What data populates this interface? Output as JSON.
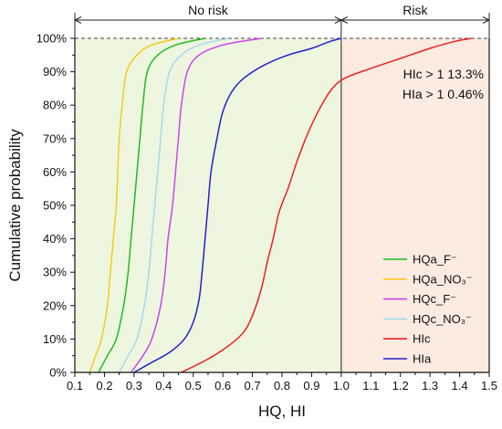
{
  "chart_data": {
    "type": "line",
    "xlabel": "HQ, HI",
    "ylabel": "Cumulative probability",
    "xlim": [
      0.1,
      1.5
    ],
    "ylim": [
      0,
      100
    ],
    "x_ticks": [
      "0.1",
      "0.2",
      "0.3",
      "0.4",
      "0.5",
      "0.6",
      "0.7",
      "0.8",
      "0.9",
      "1.0",
      "1.1",
      "1.2",
      "1.3",
      "1.4",
      "1.5"
    ],
    "y_ticks": [
      "0%",
      "10%",
      "20%",
      "30%",
      "40%",
      "50%",
      "60%",
      "70%",
      "80%",
      "90%",
      "100%"
    ],
    "regions": [
      {
        "label": "No risk",
        "x_from": 0.1,
        "x_to": 1.0,
        "color": "#eef6e0"
      },
      {
        "label": "Risk",
        "x_from": 1.0,
        "x_to": 1.5,
        "color": "#fbebe0"
      }
    ],
    "annotations": [
      "HIc > 1 13.3%",
      "HIa > 1 0.46%"
    ],
    "legend_position": "bottom-right",
    "series": [
      {
        "name": "HQa_F⁻",
        "color": "#22bb22",
        "points": [
          [
            0.18,
            0
          ],
          [
            0.21,
            5
          ],
          [
            0.24,
            10
          ],
          [
            0.265,
            20
          ],
          [
            0.28,
            30
          ],
          [
            0.29,
            40
          ],
          [
            0.3,
            50
          ],
          [
            0.31,
            60
          ],
          [
            0.32,
            70
          ],
          [
            0.33,
            80
          ],
          [
            0.345,
            90
          ],
          [
            0.38,
            95
          ],
          [
            0.44,
            98
          ],
          [
            0.54,
            100
          ]
        ]
      },
      {
        "name": "HQa_NO₃⁻",
        "color": "#f5cc18",
        "points": [
          [
            0.15,
            0
          ],
          [
            0.17,
            5
          ],
          [
            0.19,
            10
          ],
          [
            0.21,
            20
          ],
          [
            0.22,
            30
          ],
          [
            0.23,
            40
          ],
          [
            0.24,
            50
          ],
          [
            0.245,
            60
          ],
          [
            0.25,
            70
          ],
          [
            0.26,
            80
          ],
          [
            0.275,
            90
          ],
          [
            0.31,
            95
          ],
          [
            0.36,
            98
          ],
          [
            0.45,
            100
          ]
        ]
      },
      {
        "name": "HQc_F⁻",
        "color": "#cc44ee",
        "points": [
          [
            0.29,
            0
          ],
          [
            0.33,
            5
          ],
          [
            0.36,
            10
          ],
          [
            0.39,
            20
          ],
          [
            0.405,
            30
          ],
          [
            0.415,
            40
          ],
          [
            0.43,
            50
          ],
          [
            0.44,
            60
          ],
          [
            0.45,
            70
          ],
          [
            0.46,
            80
          ],
          [
            0.48,
            90
          ],
          [
            0.52,
            95
          ],
          [
            0.6,
            98
          ],
          [
            0.73,
            100
          ]
        ]
      },
      {
        "name": "HQc_NO₃⁻",
        "color": "#a8d8f0",
        "points": [
          [
            0.25,
            0
          ],
          [
            0.28,
            5
          ],
          [
            0.31,
            10
          ],
          [
            0.335,
            20
          ],
          [
            0.35,
            30
          ],
          [
            0.36,
            40
          ],
          [
            0.37,
            50
          ],
          [
            0.38,
            60
          ],
          [
            0.39,
            70
          ],
          [
            0.4,
            80
          ],
          [
            0.42,
            90
          ],
          [
            0.46,
            95
          ],
          [
            0.52,
            98
          ],
          [
            0.62,
            100
          ]
        ]
      },
      {
        "name": "HIc",
        "color": "#ee2020",
        "points": [
          [
            0.46,
            0
          ],
          [
            0.55,
            4
          ],
          [
            0.62,
            8
          ],
          [
            0.67,
            12
          ],
          [
            0.7,
            17
          ],
          [
            0.73,
            25
          ],
          [
            0.75,
            33
          ],
          [
            0.77,
            40
          ],
          [
            0.79,
            48
          ],
          [
            0.82,
            55
          ],
          [
            0.85,
            63
          ],
          [
            0.88,
            70
          ],
          [
            0.91,
            76
          ],
          [
            0.94,
            81
          ],
          [
            0.97,
            85
          ],
          [
            1.01,
            88
          ],
          [
            1.1,
            91
          ],
          [
            1.2,
            94
          ],
          [
            1.3,
            97
          ],
          [
            1.38,
            99
          ],
          [
            1.44,
            100
          ]
        ]
      },
      {
        "name": "HIa",
        "color": "#2222cc",
        "points": [
          [
            0.3,
            0
          ],
          [
            0.36,
            3
          ],
          [
            0.42,
            6
          ],
          [
            0.47,
            10
          ],
          [
            0.5,
            15
          ],
          [
            0.52,
            22
          ],
          [
            0.53,
            30
          ],
          [
            0.54,
            40
          ],
          [
            0.55,
            50
          ],
          [
            0.56,
            60
          ],
          [
            0.58,
            70
          ],
          [
            0.6,
            78
          ],
          [
            0.63,
            84
          ],
          [
            0.67,
            88
          ],
          [
            0.74,
            92
          ],
          [
            0.82,
            95
          ],
          [
            0.9,
            97
          ],
          [
            0.96,
            99
          ],
          [
            1.0,
            100
          ]
        ]
      }
    ]
  }
}
